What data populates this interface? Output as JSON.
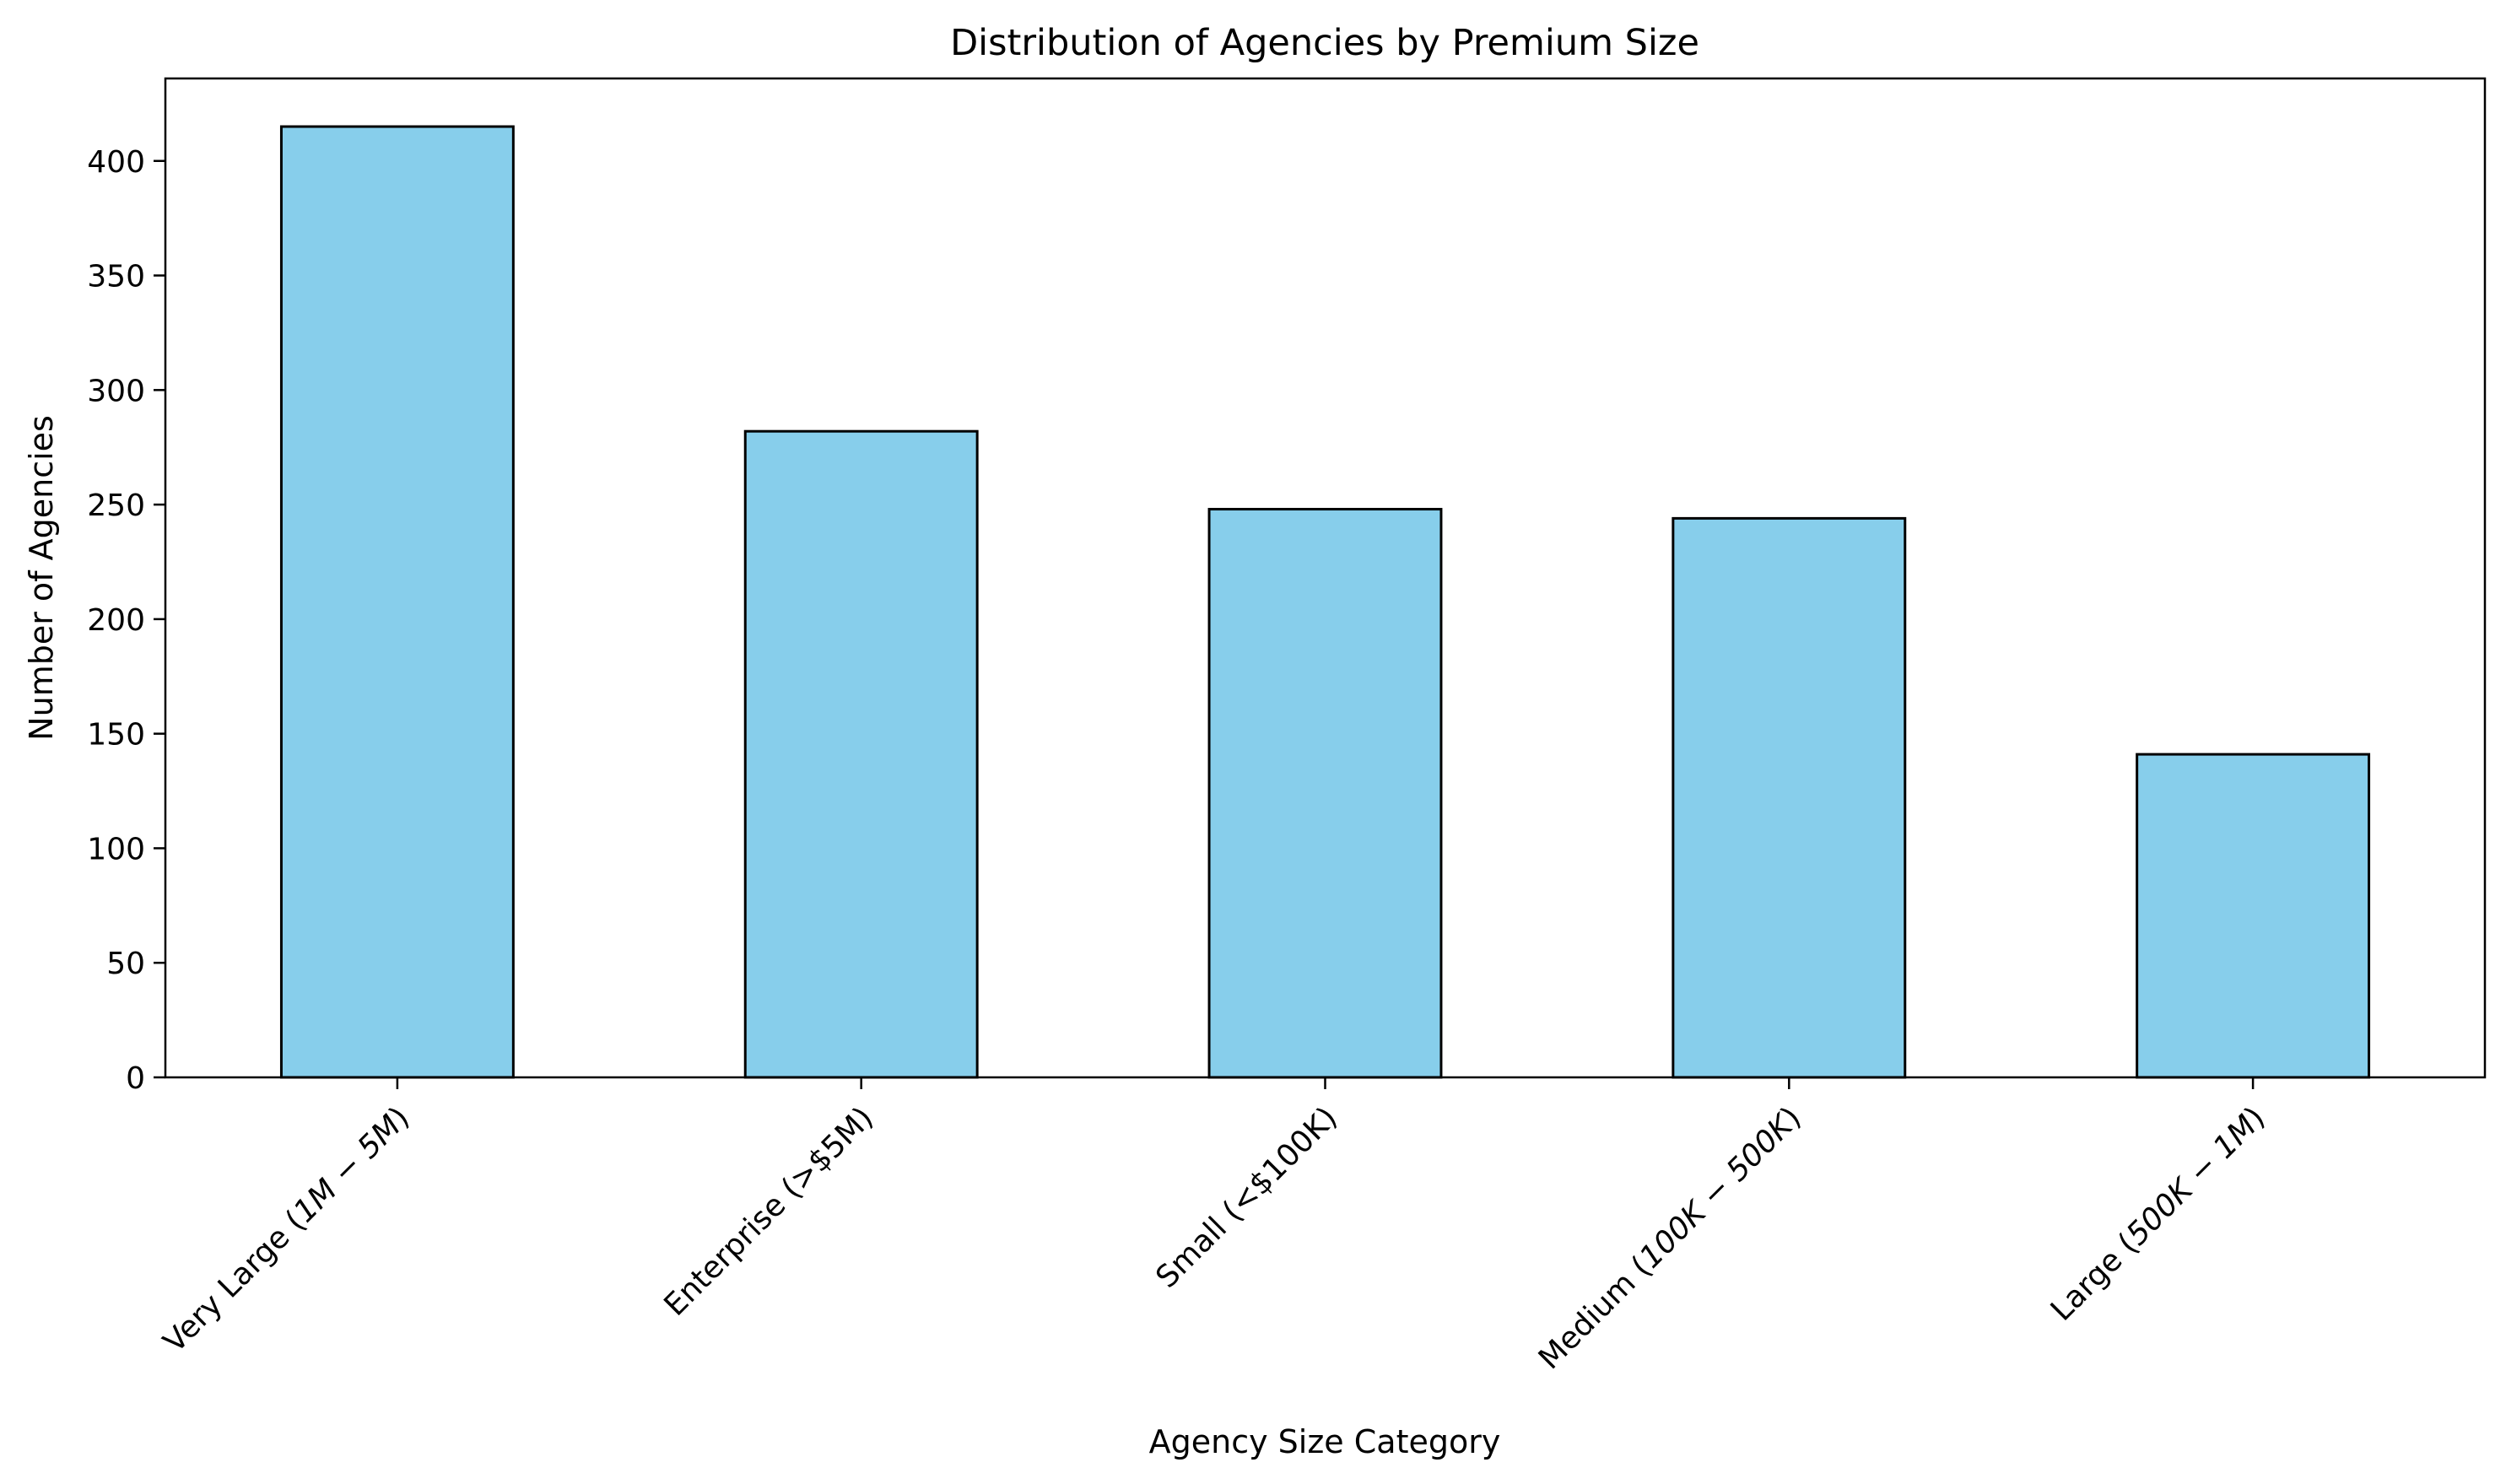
{
  "chart_data": {
    "type": "bar",
    "title": "Distribution of Agencies by Premium Size",
    "xlabel": "Agency Size Category",
    "ylabel": "Number of Agencies",
    "categories": [
      "Very Large ($1M−$5M)",
      "Enterprise (>$5M)",
      "Small (<$100K)",
      "Medium ($100K−$500K)",
      "Large ($500K−$1M)"
    ],
    "category_labels": [
      {
        "pre": "Very Large (",
        "math": "1M − 5M",
        "post": ")"
      },
      {
        "pre": "Enterprise (>$5M)",
        "math": "",
        "post": ""
      },
      {
        "pre": "Small (<$100K)",
        "math": "",
        "post": ""
      },
      {
        "pre": "Medium (",
        "math": "100K − 500K",
        "post": ")"
      },
      {
        "pre": "Large (",
        "math": "500K − 1M",
        "post": ")"
      }
    ],
    "values": [
      415,
      282,
      248,
      244,
      141
    ],
    "ylim": [
      0,
      436
    ],
    "yticks": [
      0,
      50,
      100,
      150,
      200,
      250,
      300,
      350,
      400
    ],
    "grid": false,
    "legend": "none",
    "bar_color": "#87CEEB",
    "edge_color": "#000000"
  }
}
